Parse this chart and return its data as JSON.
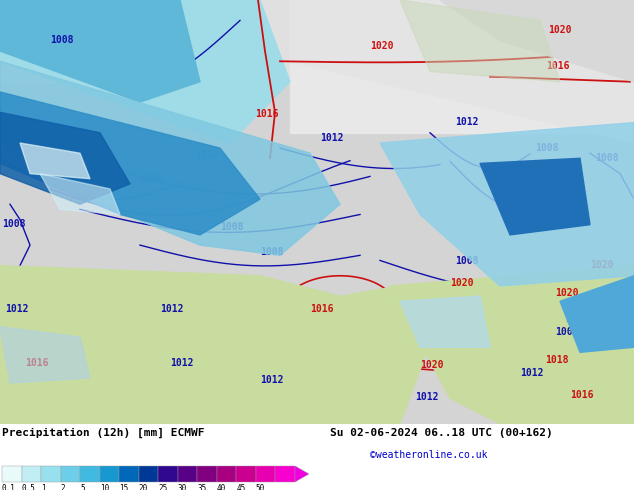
{
  "title_left": "Precipitation (12h) [mm] ECMWF",
  "date_str": "Su 02-06-2024 06..18 UTC (00+162)",
  "credit": "©weatheronline.co.uk",
  "colorbar_labels": [
    "0.1",
    "0.5",
    "1",
    "2",
    "5",
    "10",
    "15",
    "20",
    "25",
    "30",
    "35",
    "40",
    "45",
    "50"
  ],
  "colorbar_colors": [
    "#e8fafa",
    "#c0eef4",
    "#98e0ee",
    "#6ccee8",
    "#40bae0",
    "#1898d0",
    "#0068b8",
    "#003898",
    "#300890",
    "#580088",
    "#800080",
    "#a80080",
    "#cc0090",
    "#e800b0",
    "#f800d0"
  ],
  "bg_color": "#ffffff",
  "legend_bg": "#ffffff",
  "fig_width": 6.34,
  "fig_height": 4.9,
  "dpi": 100,
  "map_top_color": "#d8d8d8",
  "map_left_precip_strong": "#1060c0",
  "map_left_precip_mid": "#40a0d8",
  "map_left_precip_light": "#80c8e8",
  "map_green": "#c8dca0",
  "map_sea_light": "#c8ecf4",
  "blue_isobar_color": "#1010aa",
  "red_isobar_color": "#cc1010",
  "contour_lw": 1.0,
  "label_fontsize": 7.0
}
